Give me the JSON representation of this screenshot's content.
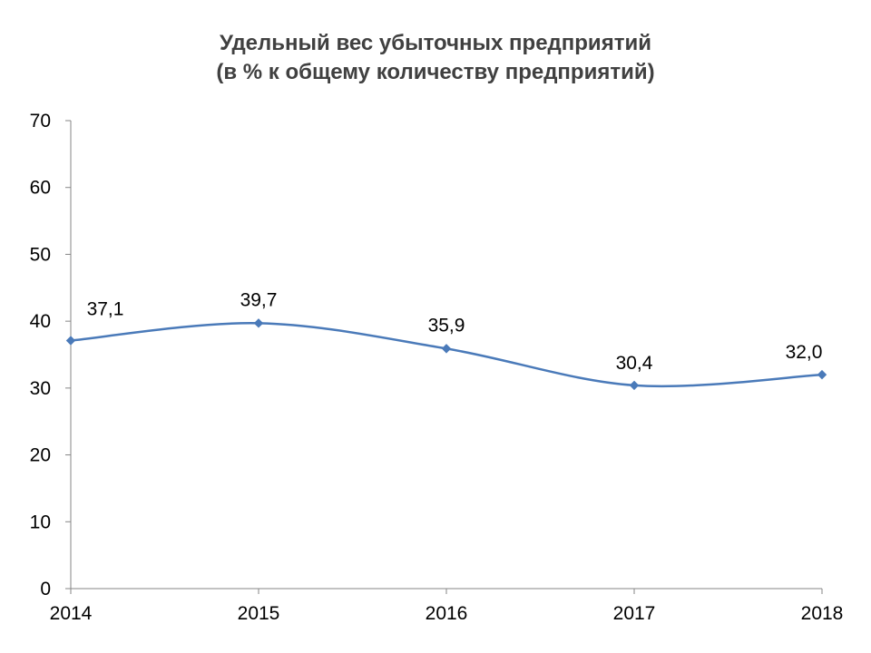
{
  "chart_data": {
    "type": "line",
    "title": [
      "Удельный вес убыточных предприятий",
      "(в % к общему количеству предприятий)"
    ],
    "x": [
      "2014",
      "2015",
      "2016",
      "2017",
      "2018"
    ],
    "series": [
      {
        "values": [
          37.1,
          39.7,
          35.9,
          30.4,
          32.0
        ],
        "labels": [
          "37,1",
          "39,7",
          "35,9",
          "30,4",
          "32,0"
        ],
        "color": "#4a7ab9",
        "smooth": true,
        "marker": "diamond"
      }
    ],
    "ylim": [
      0,
      70
    ],
    "yticks": [
      0,
      10,
      20,
      30,
      40,
      50,
      60,
      70
    ],
    "ytick_labels": [
      "0",
      "10",
      "20",
      "30",
      "40",
      "50",
      "60",
      "70"
    ],
    "xlabel": "",
    "ylabel": "",
    "grid": false,
    "legend": "none"
  }
}
